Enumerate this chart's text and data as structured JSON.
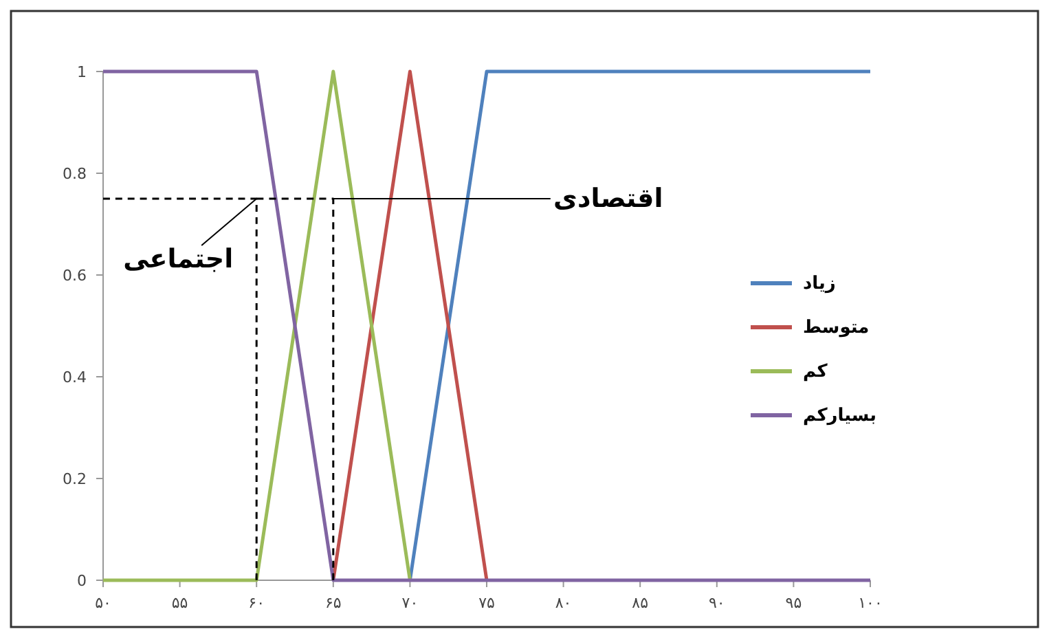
{
  "chart_data": {
    "type": "line",
    "x": [
      50,
      55,
      60,
      65,
      70,
      75,
      80,
      85,
      90,
      95,
      100
    ],
    "series": [
      {
        "name": "زیاد",
        "color": "#4f81bd",
        "values": [
          null,
          null,
          null,
          null,
          0,
          1,
          1,
          1,
          1,
          1,
          1
        ]
      },
      {
        "name": "متوسط",
        "color": "#c0504d",
        "values": [
          null,
          null,
          null,
          0,
          1,
          0,
          null,
          null,
          null,
          null,
          null
        ]
      },
      {
        "name": "کم",
        "color": "#9bbb59",
        "values": [
          0,
          0,
          0,
          1,
          0,
          null,
          null,
          null,
          null,
          null,
          null
        ]
      },
      {
        "name": "بسیارکم",
        "color": "#8064a2",
        "values": [
          1,
          1,
          1,
          0,
          0,
          0,
          0,
          0,
          0,
          0,
          0
        ]
      },
      {
        "type": "line",
        "x": [
          60,
          60,
          50
        ],
        "values": [
          0,
          0.75,
          0.75
        ],
        "color": "#000000",
        "line_style": "dashed"
      },
      {
        "type": "line",
        "x": [
          60,
          65,
          65
        ],
        "values": [
          0.75,
          0.75,
          0
        ],
        "color": "#000000",
        "line_style": "dashed"
      }
    ],
    "xlim": [
      50,
      100
    ],
    "xticks": [
      {
        "value": 50,
        "label": "۵۰"
      },
      {
        "value": 55,
        "label": "۵۵"
      },
      {
        "value": 60,
        "label": "۶۰"
      },
      {
        "value": 65,
        "label": "۶۵"
      },
      {
        "value": 70,
        "label": "۷۰"
      },
      {
        "value": 75,
        "label": "۷۵"
      },
      {
        "value": 80,
        "label": "۸۰"
      },
      {
        "value": 85,
        "label": "۸۵"
      },
      {
        "value": 90,
        "label": "۹۰"
      },
      {
        "value": 95,
        "label": "۹۵"
      },
      {
        "value": 100,
        "label": "۱۰۰"
      }
    ],
    "ylim": [
      0,
      1
    ],
    "yticks": [
      0,
      0.2,
      0.4,
      0.6,
      0.8,
      1
    ],
    "annotations": [
      {
        "text": "اجتماعی",
        "x": 60,
        "y": 0.75
      },
      {
        "text": "اقتصادی",
        "x": 65,
        "y": 0.75
      }
    ],
    "legend": "right",
    "grid": false,
    "marker": "none",
    "line_style": "solid"
  }
}
